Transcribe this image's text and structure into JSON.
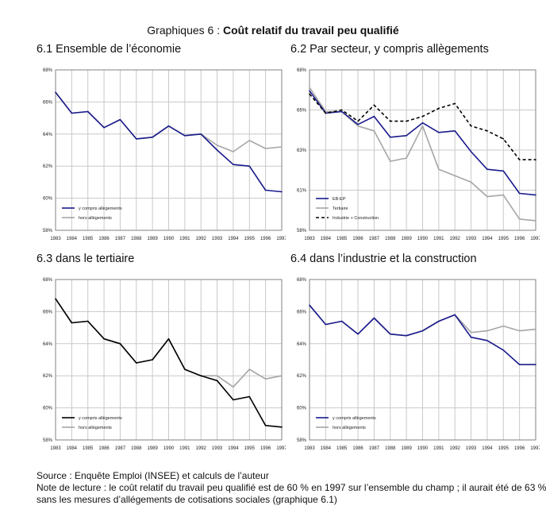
{
  "figure": {
    "title_prefix": "Graphiques 6 : ",
    "title_bold": "Coût relatif du travail peu qualifié"
  },
  "chart_data": [
    {
      "type": "line",
      "title": "6.1 Ensemble de l’économie",
      "x": [
        "1983",
        "1984",
        "1985",
        "1986",
        "1987",
        "1988",
        "1989",
        "1990",
        "1991",
        "1992",
        "1993",
        "1994",
        "1995",
        "1996",
        "1997"
      ],
      "yticks": [
        "58%",
        "60%",
        "62%",
        "64%",
        "66%",
        "68%"
      ],
      "ylim": [
        58,
        68
      ],
      "legend_position": "bottom-left",
      "series": [
        {
          "name": "y compris allègements",
          "color": "#1a1a8c",
          "dash": "",
          "values": [
            66.6,
            65.3,
            65.4,
            64.4,
            64.9,
            63.7,
            63.8,
            64.5,
            63.9,
            64.0,
            63.0,
            62.1,
            62.0,
            60.5,
            60.4
          ]
        },
        {
          "name": "hors allègements",
          "color": "#a6a6a6",
          "dash": "",
          "values": [
            66.6,
            65.3,
            65.4,
            64.4,
            64.9,
            63.7,
            63.8,
            64.5,
            63.9,
            64.0,
            63.3,
            62.9,
            63.6,
            63.1,
            63.2
          ]
        }
      ]
    },
    {
      "type": "line",
      "title": "6.2 Par secteur, y compris allègements",
      "x": [
        "1983",
        "1984",
        "1985",
        "1986",
        "1987",
        "1988",
        "1989",
        "1990",
        "1991",
        "1992",
        "1993",
        "1994",
        "1995",
        "1996",
        "1997"
      ],
      "yticks": [
        "58%",
        "61%",
        "63%",
        "66%",
        "68%"
      ],
      "ylim": [
        58.5,
        68.5
      ],
      "legend_position": "bottom-left",
      "series": [
        {
          "name": "EB-EP",
          "color": "#1a1a8c",
          "dash": "",
          "values": [
            67.2,
            65.8,
            65.9,
            65.1,
            65.6,
            64.3,
            64.4,
            65.2,
            64.6,
            64.7,
            63.4,
            62.3,
            62.2,
            60.8,
            60.7
          ]
        },
        {
          "name": "Tertiaire",
          "color": "#a6a6a6",
          "dash": "",
          "values": [
            67.4,
            65.9,
            65.9,
            65.0,
            64.7,
            62.8,
            63.0,
            65.0,
            62.3,
            61.9,
            61.5,
            60.6,
            60.7,
            59.2,
            59.1
          ]
        },
        {
          "name": "Industrie + Construction",
          "color": "#000000",
          "dash": "4,3",
          "values": [
            67.0,
            65.8,
            66.0,
            65.3,
            66.3,
            65.3,
            65.3,
            65.6,
            66.1,
            66.4,
            65.0,
            64.7,
            64.2,
            62.9,
            62.9
          ]
        }
      ]
    },
    {
      "type": "line",
      "title": "6.3 dans le tertiaire",
      "x": [
        "1983",
        "1984",
        "1985",
        "1986",
        "1987",
        "1988",
        "1989",
        "1990",
        "1991",
        "1992",
        "1993",
        "1994",
        "1995",
        "1996",
        "1997"
      ],
      "yticks": [
        "58%",
        "60%",
        "62%",
        "64%",
        "66%",
        "68%"
      ],
      "ylim": [
        58,
        68
      ],
      "legend_position": "bottom-left",
      "series": [
        {
          "name": "y compris allègements",
          "color": "#000000",
          "dash": "",
          "values": [
            66.8,
            65.3,
            65.4,
            64.3,
            64.0,
            62.8,
            63.0,
            64.3,
            62.4,
            62.0,
            61.7,
            60.5,
            60.7,
            58.9,
            58.8
          ]
        },
        {
          "name": "hors allègements",
          "color": "#a6a6a6",
          "dash": "",
          "values": [
            66.8,
            65.3,
            65.4,
            64.3,
            64.0,
            62.8,
            63.0,
            64.3,
            62.4,
            62.0,
            62.0,
            61.3,
            62.4,
            61.8,
            62.0
          ]
        }
      ]
    },
    {
      "type": "line",
      "title": "6.4 dans l’industrie et la construction",
      "x": [
        "1983",
        "1984",
        "1985",
        "1986",
        "1987",
        "1988",
        "1989",
        "1990",
        "1991",
        "1992",
        "1993",
        "1994",
        "1995",
        "1996",
        "1997"
      ],
      "yticks": [
        "58%",
        "60%",
        "62%",
        "64%",
        "66%",
        "68%"
      ],
      "ylim": [
        58,
        68
      ],
      "legend_position": "bottom-left",
      "series": [
        {
          "name": "y compris allègements",
          "color": "#1a1a8c",
          "dash": "",
          "values": [
            66.4,
            65.2,
            65.4,
            64.6,
            65.6,
            64.6,
            64.5,
            64.8,
            65.4,
            65.8,
            64.4,
            64.2,
            63.6,
            62.7,
            62.7
          ]
        },
        {
          "name": "hors allègements",
          "color": "#a6a6a6",
          "dash": "",
          "values": [
            66.4,
            65.2,
            65.4,
            64.6,
            65.6,
            64.6,
            64.5,
            64.8,
            65.4,
            65.8,
            64.7,
            64.8,
            65.1,
            64.8,
            64.9
          ]
        }
      ]
    }
  ],
  "footer": {
    "source": "Source : Enquête Emploi (INSEE) et calculs de l’auteur",
    "note_line1": "Note de lecture : le coût relatif du travail peu qualifié est de 60 % en 1997 sur l’ensemble du champ ; il aurait été de 63 %",
    "note_line2": "sans les mesures d’allégements de cotisations sociales (graphique 6.1)"
  }
}
